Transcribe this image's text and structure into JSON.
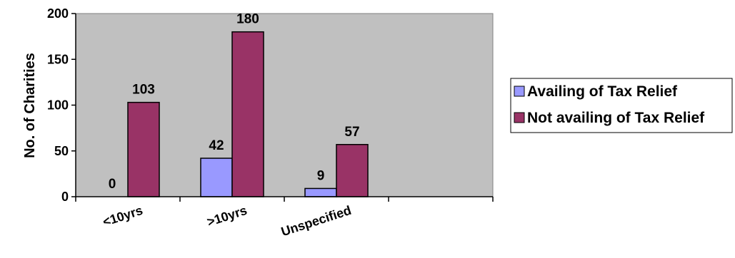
{
  "chart_data": {
    "type": "bar",
    "title": "",
    "xlabel": "",
    "ylabel": "No. of Charities",
    "ylim": [
      0,
      200
    ],
    "yticks": [
      0,
      50,
      100,
      150,
      200
    ],
    "categories": [
      "<10yrs",
      ">10yrs",
      "Unspecified"
    ],
    "extra_category_slots": 1,
    "grid": false,
    "legend_position": "right",
    "plot_background": "#c0c0c0",
    "series": [
      {
        "name": "Availing of Tax Relief",
        "color": "#9999ff",
        "values": [
          0,
          42,
          9
        ]
      },
      {
        "name": "Not availing of Tax Relief",
        "color": "#993366",
        "values": [
          103,
          180,
          57
        ]
      }
    ]
  }
}
